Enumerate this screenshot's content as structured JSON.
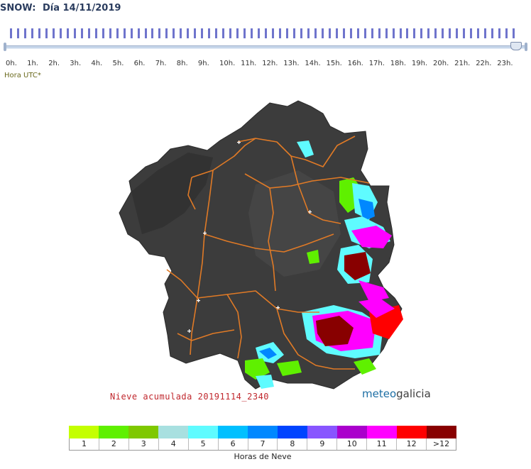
{
  "header": {
    "variable": "SNOW:",
    "date": "Día 14/11/2019"
  },
  "timeline": {
    "hours": [
      "0h.",
      "1h.",
      "2h.",
      "3h.",
      "4h.",
      "5h.",
      "6h.",
      "7h.",
      "8h.",
      "9h.",
      "10h.",
      "11h.",
      "12h.",
      "13h.",
      "14h.",
      "15h.",
      "16h.",
      "17h.",
      "18h.",
      "19h.",
      "20h.",
      "21h.",
      "22h.",
      "23h."
    ],
    "tick_count": 72,
    "selected_index": 23,
    "note": "Hora UTC*"
  },
  "map": {
    "caption": "Nieve acumulada 20191114_2340",
    "logo_part1": "meteo",
    "logo_part2": "galicia"
  },
  "legend": {
    "title": "Horas de Neve",
    "items": [
      {
        "label": "1",
        "color": "#c4ff00"
      },
      {
        "label": "2",
        "color": "#5ff000"
      },
      {
        "label": "3",
        "color": "#7fc800"
      },
      {
        "label": "4",
        "color": "#a8e0e0"
      },
      {
        "label": "5",
        "color": "#5ffbff"
      },
      {
        "label": "6",
        "color": "#00c0ff"
      },
      {
        "label": "7",
        "color": "#0088ff"
      },
      {
        "label": "8",
        "color": "#0044ff"
      },
      {
        "label": "9",
        "color": "#8855ff"
      },
      {
        "label": "10",
        "color": "#aa00cc"
      },
      {
        "label": "11",
        "color": "#ff00ff"
      },
      {
        "label": "12",
        "color": "#ff0000"
      },
      {
        "label": ">12",
        "color": "#880000"
      }
    ]
  },
  "colors": {
    "header_text": "#2a3c5e",
    "tick": "#6f74cc",
    "road": "#e07a26",
    "land": "#3a3a3a",
    "caption": "#c0272d"
  }
}
